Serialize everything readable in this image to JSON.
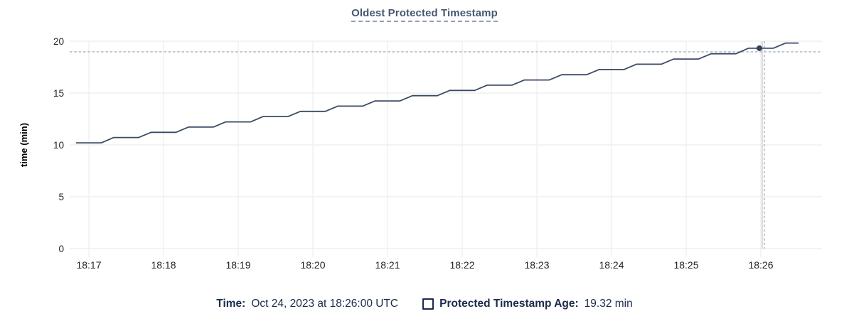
{
  "title": "Oldest Protected Timestamp",
  "axes": {
    "y_label": "time (min)",
    "y_ticks": [
      0,
      5,
      10,
      15,
      20
    ],
    "x_ticks": [
      "18:17",
      "18:18",
      "18:19",
      "18:20",
      "18:21",
      "18:22",
      "18:23",
      "18:24",
      "18:25",
      "18:26"
    ]
  },
  "legend": {
    "time_label": "Time:",
    "time_value": "Oct 24, 2023 at 18:26:00 UTC",
    "series_label": "Protected Timestamp Age:",
    "series_value": "19.32 min"
  },
  "colors": {
    "line": "#3b4a64",
    "dot": "#344159",
    "title": "#475872",
    "legend_text": "#1b2b4d",
    "tick_text": "#242424",
    "axis_label": "#000000",
    "grid_h": "#ececec",
    "grid_v": "#efefef",
    "hover_line": "#dcdcdc",
    "crosshair": "#a2b5bd"
  },
  "chart_data": {
    "type": "line",
    "title": "Oldest Protected Timestamp",
    "xlabel": "",
    "ylabel": "time (min)",
    "ylim": [
      0,
      20
    ],
    "x_range": [
      "18:16:50",
      "18:26:30"
    ],
    "grid": true,
    "legend_position": "bottom",
    "hover": {
      "time": "18:26:00",
      "value": 19.32
    },
    "series": [
      {
        "name": "Protected Timestamp Age",
        "unit": "min",
        "points": [
          [
            "18:16:50",
            10.2
          ],
          [
            "18:17:00",
            10.2
          ],
          [
            "18:17:10",
            10.2
          ],
          [
            "18:17:20",
            10.71
          ],
          [
            "18:17:30",
            10.71
          ],
          [
            "18:17:40",
            10.71
          ],
          [
            "18:17:50",
            11.21
          ],
          [
            "18:18:00",
            11.21
          ],
          [
            "18:18:10",
            11.21
          ],
          [
            "18:18:20",
            11.72
          ],
          [
            "18:18:30",
            11.72
          ],
          [
            "18:18:40",
            11.72
          ],
          [
            "18:18:50",
            12.22
          ],
          [
            "18:19:00",
            12.22
          ],
          [
            "18:19:10",
            12.22
          ],
          [
            "18:19:20",
            12.73
          ],
          [
            "18:19:30",
            12.73
          ],
          [
            "18:19:40",
            12.73
          ],
          [
            "18:19:50",
            13.23
          ],
          [
            "18:20:00",
            13.23
          ],
          [
            "18:20:10",
            13.23
          ],
          [
            "18:20:20",
            13.74
          ],
          [
            "18:20:30",
            13.74
          ],
          [
            "18:20:40",
            13.74
          ],
          [
            "18:20:50",
            14.24
          ],
          [
            "18:21:00",
            14.24
          ],
          [
            "18:21:10",
            14.24
          ],
          [
            "18:21:20",
            14.75
          ],
          [
            "18:21:30",
            14.75
          ],
          [
            "18:21:40",
            14.75
          ],
          [
            "18:21:50",
            15.25
          ],
          [
            "18:22:00",
            15.25
          ],
          [
            "18:22:10",
            15.25
          ],
          [
            "18:22:20",
            15.76
          ],
          [
            "18:22:30",
            15.76
          ],
          [
            "18:22:40",
            15.76
          ],
          [
            "18:22:50",
            16.26
          ],
          [
            "18:23:00",
            16.26
          ],
          [
            "18:23:10",
            16.26
          ],
          [
            "18:23:20",
            16.77
          ],
          [
            "18:23:30",
            16.77
          ],
          [
            "18:23:40",
            16.77
          ],
          [
            "18:23:50",
            17.27
          ],
          [
            "18:24:00",
            17.27
          ],
          [
            "18:24:10",
            17.27
          ],
          [
            "18:24:20",
            17.78
          ],
          [
            "18:24:30",
            17.78
          ],
          [
            "18:24:40",
            17.78
          ],
          [
            "18:24:50",
            18.28
          ],
          [
            "18:25:00",
            18.28
          ],
          [
            "18:25:10",
            18.28
          ],
          [
            "18:25:20",
            18.79
          ],
          [
            "18:25:30",
            18.79
          ],
          [
            "18:25:40",
            18.79
          ],
          [
            "18:25:50",
            19.32
          ],
          [
            "18:26:00",
            19.32
          ],
          [
            "18:26:10",
            19.32
          ],
          [
            "18:26:20",
            19.82
          ],
          [
            "18:26:30",
            19.82
          ]
        ]
      }
    ]
  }
}
